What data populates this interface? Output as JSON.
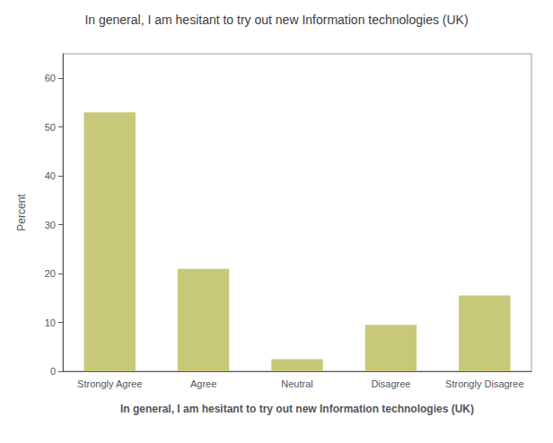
{
  "chart_data": {
    "type": "bar",
    "title": "In general, I am hesitant to try out new Information technologies (UK)",
    "xlabel": "In general, I am hesitant to try out new Information technologies (UK)",
    "ylabel": "Percent",
    "categories": [
      "Strongly Agree",
      "Agree",
      "Neutral",
      "Disagree",
      "Strongly Disagree"
    ],
    "values": [
      53.0,
      21.0,
      2.5,
      9.5,
      15.5
    ],
    "color": "#c8c87a",
    "ylim": [
      0,
      65
    ],
    "yticks": [
      0,
      10,
      20,
      30,
      40,
      50,
      60
    ],
    "grid": false
  }
}
